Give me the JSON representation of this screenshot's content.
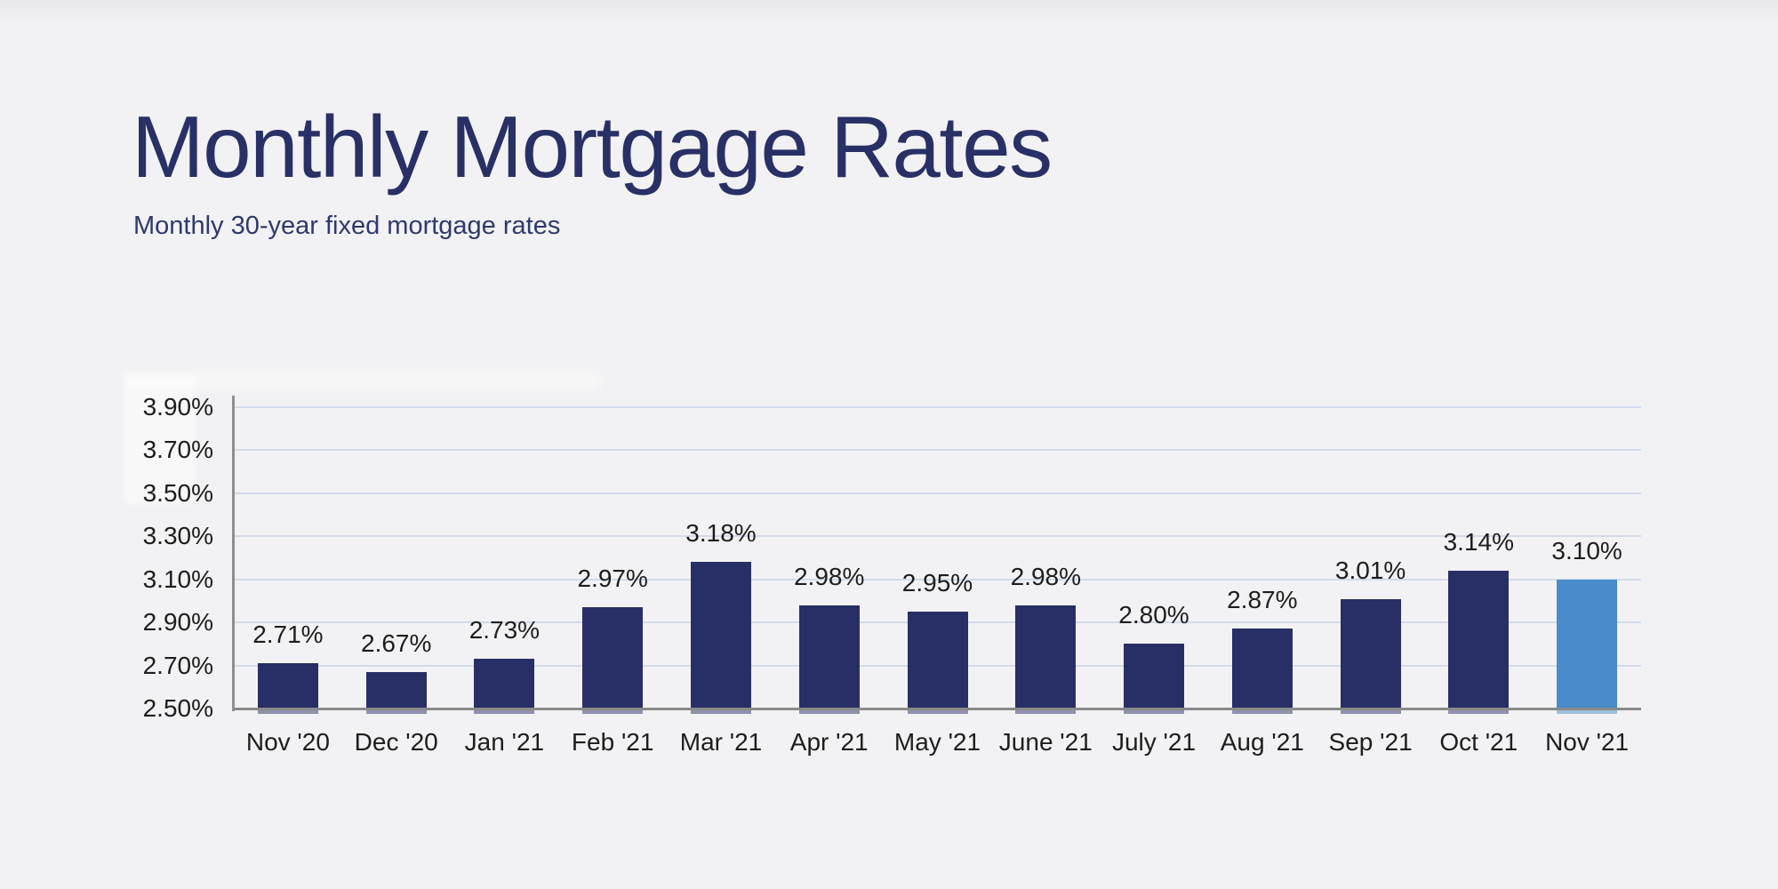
{
  "page": {
    "background": "#f2f2f4"
  },
  "header": {
    "title": "Monthly Mortgage Rates",
    "subtitle": "Monthly 30-year fixed mortgage rates",
    "title_color": "#283066",
    "subtitle_color": "#2e3a6d"
  },
  "chart_data": {
    "type": "bar",
    "title": "Monthly Mortgage Rates",
    "subtitle": "Monthly 30-year fixed mortgage rates",
    "categories": [
      "Nov '20",
      "Dec '20",
      "Jan '21",
      "Feb '21",
      "Mar '21",
      "Apr '21",
      "May '21",
      "June '21",
      "July '21",
      "Aug '21",
      "Sep '21",
      "Oct '21",
      "Nov '21"
    ],
    "values": [
      2.71,
      2.67,
      2.73,
      2.97,
      3.18,
      2.98,
      2.95,
      2.98,
      2.8,
      2.87,
      3.01,
      3.14,
      3.1
    ],
    "value_labels": [
      "2.71%",
      "2.67%",
      "2.73%",
      "2.97%",
      "3.18%",
      "2.98%",
      "2.95%",
      "2.98%",
      "2.80%",
      "2.87%",
      "3.01%",
      "3.14%",
      "3.10%"
    ],
    "xlabel": "",
    "ylabel": "",
    "ylim": [
      2.5,
      3.9
    ],
    "ytick_values": [
      3.9,
      3.7,
      3.5,
      3.3,
      3.1,
      2.9,
      2.7,
      2.5
    ],
    "ytick_labels": [
      "3.90%",
      "3.70%",
      "3.50%",
      "3.30%",
      "3.10%",
      "2.90%",
      "2.70%",
      "2.50%"
    ],
    "grid": true,
    "legend": "none",
    "highlight_index": 12,
    "colors": {
      "bar": "#272f66",
      "highlight": "#4a8bc9",
      "gridline": "#d3dbeb",
      "axis": "#8a8a8a",
      "text": "#1d1d1d"
    }
  }
}
